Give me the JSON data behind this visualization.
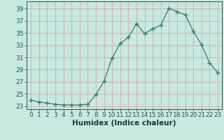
{
  "x": [
    0,
    1,
    2,
    3,
    4,
    5,
    6,
    7,
    8,
    9,
    10,
    11,
    12,
    13,
    14,
    15,
    16,
    17,
    18,
    19,
    20,
    21,
    22,
    23
  ],
  "y": [
    24.0,
    23.7,
    23.5,
    23.3,
    23.2,
    23.2,
    23.2,
    23.3,
    24.9,
    27.1,
    30.9,
    33.3,
    34.3,
    36.5,
    34.9,
    35.7,
    36.3,
    39.1,
    38.5,
    38.0,
    35.3,
    33.1,
    30.1,
    28.5
  ],
  "line_color": "#2e7d6e",
  "marker": "+",
  "marker_size": 4,
  "bg_color": "#c8e8e0",
  "grid_color_h": "#d4a0a0",
  "grid_color_v": "#d4a0a0",
  "xlabel": "Humidex (Indice chaleur)",
  "xlim": [
    -0.5,
    23.5
  ],
  "ylim": [
    22.5,
    40.2
  ],
  "yticks": [
    23,
    25,
    27,
    29,
    31,
    33,
    35,
    37,
    39
  ],
  "xticks": [
    0,
    1,
    2,
    3,
    4,
    5,
    6,
    7,
    8,
    9,
    10,
    11,
    12,
    13,
    14,
    15,
    16,
    17,
    18,
    19,
    20,
    21,
    22,
    23
  ],
  "font_size": 6.5,
  "xlabel_fontsize": 7.5
}
